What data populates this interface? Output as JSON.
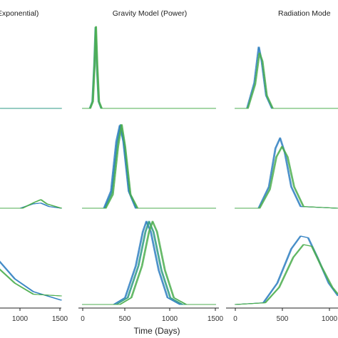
{
  "colors": {
    "blue": "#2f7fc1",
    "green": "#4cae4f",
    "teal": "#2e9a84",
    "axis": "#222222"
  },
  "xlabel": "Time (Days)",
  "x_ticks_left": [
    "1000",
    "1500"
  ],
  "chart_data": [
    {
      "type": "line",
      "title": "Exponential)",
      "row": 0,
      "xlim": [
        0,
        1500
      ],
      "ylim": [
        0,
        1
      ],
      "series": [
        {
          "color": "#2e9a84",
          "points": [
            [
              0,
              0.0
            ],
            [
              1500,
              0.0
            ]
          ]
        }
      ]
    },
    {
      "type": "line",
      "title": "Gravity Model (Power)",
      "row": 0,
      "xlim": [
        0,
        1500
      ],
      "ylim": [
        0,
        1
      ],
      "series": [
        {
          "color": "#2e9a84",
          "points": [
            [
              0,
              0.0
            ],
            [
              80,
              0.0
            ],
            [
              110,
              0.08
            ],
            [
              130,
              0.5
            ],
            [
              145,
              0.95
            ],
            [
              160,
              0.5
            ],
            [
              180,
              0.08
            ],
            [
              210,
              0.0
            ],
            [
              1500,
              0.0
            ]
          ]
        },
        {
          "color": "#4cae4f",
          "points": [
            [
              0,
              0.0
            ],
            [
              85,
              0.0
            ],
            [
              115,
              0.08
            ],
            [
              135,
              0.5
            ],
            [
              150,
              0.96
            ],
            [
              165,
              0.5
            ],
            [
              185,
              0.08
            ],
            [
              215,
              0.0
            ],
            [
              1500,
              0.0
            ]
          ]
        }
      ]
    },
    {
      "type": "line",
      "title": "Radiation Mode",
      "row": 0,
      "xlim": [
        0,
        700
      ],
      "ylim": [
        0,
        1
      ],
      "series": [
        {
          "color": "#2f7fc1",
          "points": [
            [
              0,
              0.0
            ],
            [
              80,
              0.0
            ],
            [
              130,
              0.3
            ],
            [
              160,
              0.72
            ],
            [
              180,
              0.55
            ],
            [
              210,
              0.15
            ],
            [
              250,
              0.0
            ],
            [
              700,
              0.0
            ]
          ]
        },
        {
          "color": "#4cae4f",
          "points": [
            [
              0,
              0.0
            ],
            [
              85,
              0.0
            ],
            [
              135,
              0.28
            ],
            [
              165,
              0.65
            ],
            [
              185,
              0.55
            ],
            [
              215,
              0.15
            ],
            [
              255,
              0.0
            ],
            [
              700,
              0.0
            ]
          ]
        }
      ]
    },
    {
      "type": "line",
      "row": 1,
      "xlim": [
        0,
        1500
      ],
      "ylim": [
        0,
        1
      ],
      "series": [
        {
          "color": "#2f7fc1",
          "points": [
            [
              0,
              0.0
            ],
            [
              500,
              0.0
            ],
            [
              800,
              0.05
            ],
            [
              1000,
              0.06
            ],
            [
              1200,
              0.02
            ],
            [
              1500,
              0.0
            ]
          ]
        },
        {
          "color": "#4cae4f",
          "points": [
            [
              0,
              0.0
            ],
            [
              550,
              0.0
            ],
            [
              850,
              0.07
            ],
            [
              1000,
              0.1
            ],
            [
              1150,
              0.05
            ],
            [
              1500,
              0.0
            ]
          ]
        }
      ]
    },
    {
      "type": "line",
      "row": 1,
      "xlim": [
        0,
        1500
      ],
      "ylim": [
        0,
        1
      ],
      "series": [
        {
          "color": "#2e9a84",
          "points": [
            [
              0,
              0.0
            ],
            [
              250,
              0.0
            ],
            [
              330,
              0.18
            ],
            [
              390,
              0.75
            ],
            [
              430,
              0.98
            ],
            [
              470,
              0.75
            ],
            [
              530,
              0.18
            ],
            [
              610,
              0.0
            ],
            [
              1500,
              0.0
            ]
          ]
        },
        {
          "color": "#2f7fc1",
          "points": [
            [
              0,
              0.0
            ],
            [
              240,
              0.0
            ],
            [
              320,
              0.2
            ],
            [
              380,
              0.78
            ],
            [
              420,
              0.97
            ],
            [
              460,
              0.78
            ],
            [
              520,
              0.2
            ],
            [
              600,
              0.0
            ],
            [
              1500,
              0.0
            ]
          ]
        },
        {
          "color": "#4cae4f",
          "points": [
            [
              0,
              0.0
            ],
            [
              260,
              0.0
            ],
            [
              340,
              0.16
            ],
            [
              400,
              0.72
            ],
            [
              440,
              0.98
            ],
            [
              480,
              0.72
            ],
            [
              540,
              0.16
            ],
            [
              620,
              0.0
            ],
            [
              1500,
              0.0
            ]
          ]
        }
      ]
    },
    {
      "type": "line",
      "row": 1,
      "xlim": [
        0,
        1100
      ],
      "ylim": [
        0,
        1
      ],
      "series": [
        {
          "color": "#2f7fc1",
          "points": [
            [
              0,
              0.0
            ],
            [
              250,
              0.0
            ],
            [
              360,
              0.25
            ],
            [
              430,
              0.7
            ],
            [
              480,
              0.82
            ],
            [
              530,
              0.65
            ],
            [
              600,
              0.25
            ],
            [
              700,
              0.02
            ],
            [
              1100,
              0.0
            ]
          ]
        },
        {
          "color": "#4cae4f",
          "points": [
            [
              0,
              0.0
            ],
            [
              260,
              0.0
            ],
            [
              370,
              0.22
            ],
            [
              440,
              0.6
            ],
            [
              500,
              0.72
            ],
            [
              560,
              0.6
            ],
            [
              630,
              0.25
            ],
            [
              730,
              0.02
            ],
            [
              1100,
              0.0
            ]
          ]
        }
      ]
    },
    {
      "type": "line",
      "row": 2,
      "xlim": [
        0,
        1500
      ],
      "ylim": [
        0,
        1
      ],
      "series": [
        {
          "color": "#2f7fc1",
          "points": [
            [
              0,
              1.0
            ],
            [
              400,
              0.9
            ],
            [
              800,
              0.55
            ],
            [
              1000,
              0.3
            ],
            [
              1200,
              0.15
            ],
            [
              1500,
              0.05
            ]
          ]
        },
        {
          "color": "#4cae4f",
          "points": [
            [
              0,
              0.85
            ],
            [
              400,
              0.75
            ],
            [
              800,
              0.45
            ],
            [
              1000,
              0.25
            ],
            [
              1200,
              0.12
            ],
            [
              1500,
              0.1
            ]
          ]
        }
      ]
    },
    {
      "type": "line",
      "row": 2,
      "xlim": [
        0,
        1500
      ],
      "ylim": [
        0,
        1
      ],
      "series": [
        {
          "color": "#2f7fc1",
          "points": [
            [
              0,
              0.0
            ],
            [
              350,
              0.0
            ],
            [
              480,
              0.08
            ],
            [
              600,
              0.45
            ],
            [
              680,
              0.85
            ],
            [
              720,
              0.97
            ],
            [
              770,
              0.85
            ],
            [
              860,
              0.4
            ],
            [
              960,
              0.08
            ],
            [
              1100,
              0.0
            ],
            [
              1500,
              0.0
            ]
          ]
        },
        {
          "color": "#2e9a84",
          "points": [
            [
              0,
              0.0
            ],
            [
              380,
              0.0
            ],
            [
              510,
              0.08
            ],
            [
              630,
              0.45
            ],
            [
              710,
              0.85
            ],
            [
              750,
              0.97
            ],
            [
              800,
              0.85
            ],
            [
              890,
              0.4
            ],
            [
              990,
              0.08
            ],
            [
              1130,
              0.0
            ],
            [
              1500,
              0.0
            ]
          ]
        },
        {
          "color": "#4cae4f",
          "points": [
            [
              0,
              0.0
            ],
            [
              420,
              0.0
            ],
            [
              550,
              0.08
            ],
            [
              670,
              0.45
            ],
            [
              750,
              0.85
            ],
            [
              790,
              0.97
            ],
            [
              840,
              0.85
            ],
            [
              930,
              0.4
            ],
            [
              1030,
              0.08
            ],
            [
              1170,
              0.0
            ],
            [
              1500,
              0.0
            ]
          ]
        }
      ]
    },
    {
      "type": "line",
      "row": 2,
      "xlim": [
        0,
        1100
      ],
      "ylim": [
        0,
        1
      ],
      "series": [
        {
          "color": "#2f7fc1",
          "points": [
            [
              0,
              0.0
            ],
            [
              300,
              0.02
            ],
            [
              450,
              0.25
            ],
            [
              600,
              0.65
            ],
            [
              700,
              0.8
            ],
            [
              780,
              0.78
            ],
            [
              880,
              0.55
            ],
            [
              1000,
              0.25
            ],
            [
              1100,
              0.1
            ]
          ]
        },
        {
          "color": "#4cae4f",
          "points": [
            [
              0,
              0.0
            ],
            [
              320,
              0.02
            ],
            [
              470,
              0.2
            ],
            [
              620,
              0.55
            ],
            [
              730,
              0.7
            ],
            [
              820,
              0.68
            ],
            [
              920,
              0.45
            ],
            [
              1040,
              0.2
            ],
            [
              1100,
              0.12
            ]
          ]
        }
      ]
    }
  ],
  "x_ticks_mid": [
    "0",
    "500",
    "1000",
    "1500"
  ],
  "x_ticks_right": [
    "0",
    "500",
    "1000"
  ]
}
